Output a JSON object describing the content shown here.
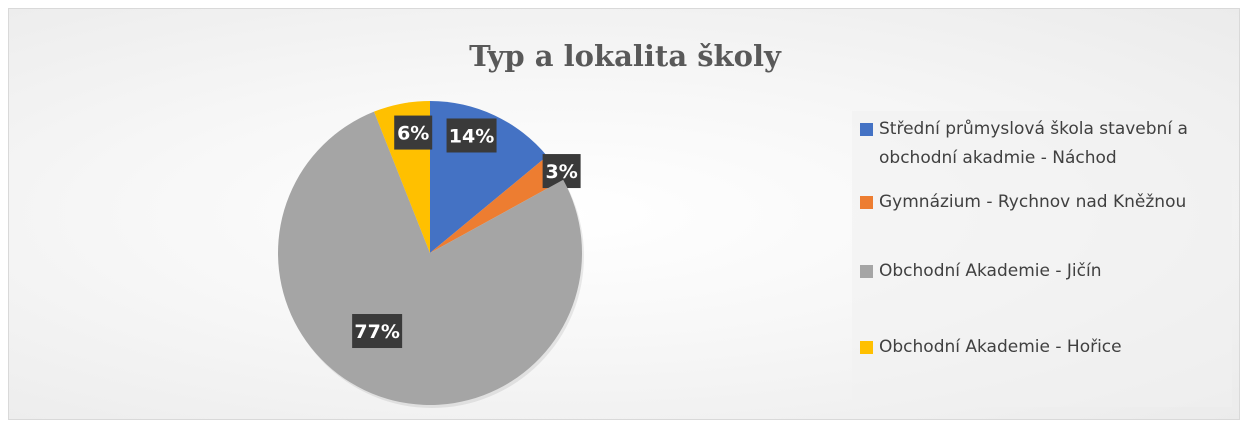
{
  "chart_data": {
    "type": "pie",
    "title": "Typ a lokalita školy",
    "categories": [
      "Střední průmyslová škola stavební a obchodní akadmie - Náchod",
      "Gymnázium - Rychnov nad Kněžnou",
      "Obchodní Akademie - Jičín",
      "Obchodní Akademie - Hořice"
    ],
    "values": [
      14,
      3,
      77,
      6
    ],
    "data_labels": [
      "14%",
      "3%",
      "77%",
      "6%"
    ],
    "colors": [
      "#4472C4",
      "#ED7D31",
      "#A5A5A5",
      "#FFC000"
    ],
    "legend_position": "right",
    "start_angle_deg": 0
  }
}
